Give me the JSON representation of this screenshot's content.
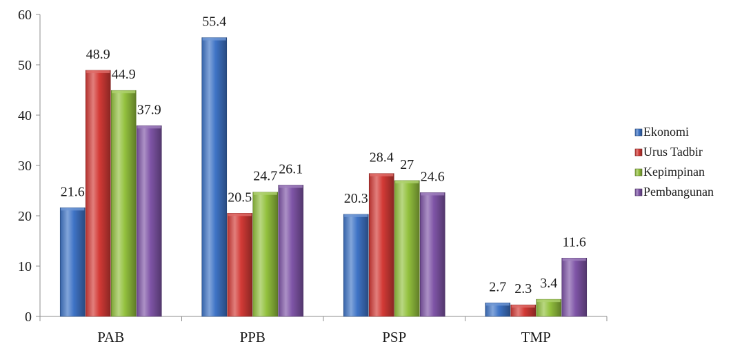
{
  "chart_data": {
    "type": "bar",
    "categories": [
      "PAB",
      "PPB",
      "PSP",
      "TMP"
    ],
    "series": [
      {
        "name": "Ekonomi",
        "values": [
          21.6,
          55.4,
          20.3,
          2.7
        ],
        "color": "#3f74c6"
      },
      {
        "name": "Urus Tadbir",
        "values": [
          48.9,
          20.5,
          28.4,
          2.3
        ],
        "color": "#d33a36"
      },
      {
        "name": "Kepimpinan",
        "values": [
          44.9,
          24.7,
          27,
          3.4
        ],
        "color": "#93c13e"
      },
      {
        "name": "Pembangunan",
        "values": [
          37.9,
          26.1,
          24.6,
          11.6
        ],
        "color": "#7f55a7"
      }
    ],
    "ylim": [
      0,
      60
    ],
    "yticks": [
      "0",
      "10",
      "20",
      "30",
      "40",
      "50",
      "60"
    ],
    "data_labels": [
      [
        "21.6",
        "55.4",
        "20.3",
        "2.7"
      ],
      [
        "48.9",
        "20.5",
        "28.4",
        "2.3"
      ],
      [
        "44.9",
        "24.7",
        "27",
        "3.4"
      ],
      [
        "37.9",
        "26.1",
        "24.6",
        "11.6"
      ]
    ],
    "grid": false,
    "legend": "right"
  }
}
